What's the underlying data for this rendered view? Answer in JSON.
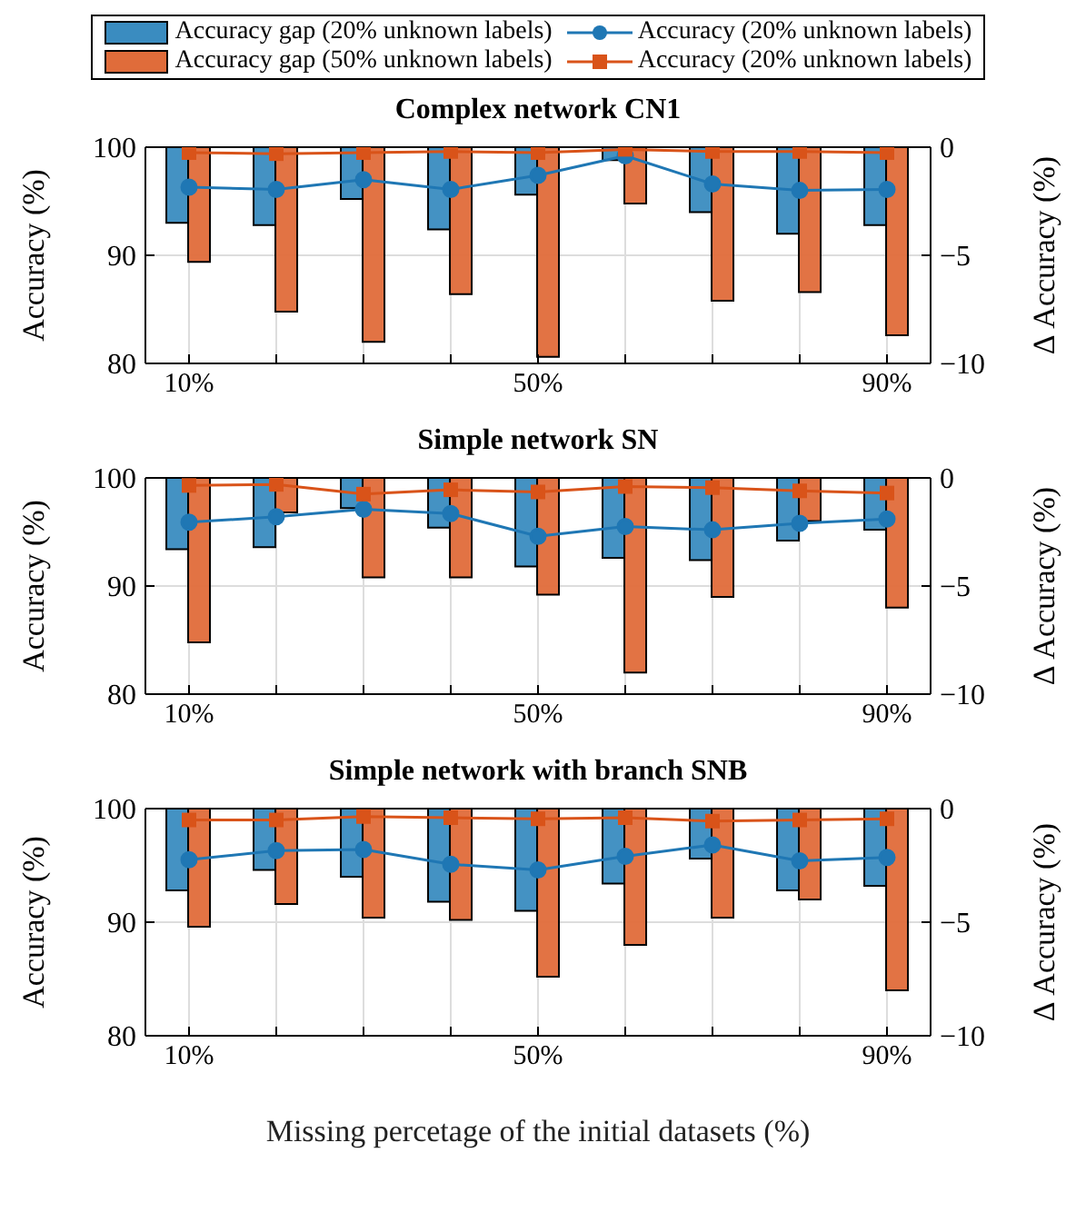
{
  "chart_data": [
    {
      "type": "bar",
      "title": "Complex network CN1",
      "ylabel": "Accuracy (%)",
      "y2label": "Δ Accuracy (%)",
      "legend": "top",
      "grid": true,
      "categories": [
        "10%",
        null,
        null,
        null,
        "50%",
        null,
        null,
        null,
        "90%"
      ],
      "ylim": [
        80,
        100
      ],
      "yticks": [
        80,
        90,
        100
      ],
      "y2lim": [
        -10,
        0
      ],
      "y2ticks": [
        -10,
        -5,
        0
      ],
      "series": [
        {
          "name": "Accuracy gap (20% unknown labels)",
          "type": "bar",
          "axis": "y2",
          "color": "#3a8cc0",
          "values": [
            -3.5,
            -3.6,
            -2.4,
            -3.8,
            -2.2,
            -0.6,
            -3.0,
            -4.0,
            -3.6
          ]
        },
        {
          "name": "Accuracy gap (50% unknown labels)",
          "type": "bar",
          "axis": "y2",
          "color": "#e06c3a",
          "values": [
            -5.3,
            -7.6,
            -9.0,
            -6.8,
            -9.7,
            -2.6,
            -7.1,
            -6.7,
            -8.7
          ]
        },
        {
          "name": "Accuracy (20% unknown labels)",
          "type": "line",
          "marker": "circle",
          "color": "#1f77b4",
          "values": [
            96.3,
            96.1,
            97.0,
            96.1,
            97.4,
            99.2,
            96.6,
            96.0,
            96.1
          ]
        },
        {
          "name": "Accuracy (20% unknown labels)",
          "type": "line",
          "marker": "square",
          "color": "#d95319",
          "values": [
            99.5,
            99.4,
            99.5,
            99.6,
            99.5,
            99.8,
            99.6,
            99.6,
            99.5
          ]
        }
      ]
    },
    {
      "type": "bar",
      "title": "Simple network SN",
      "ylabel": "Accuracy (%)",
      "y2label": "Δ Accuracy (%)",
      "grid": true,
      "categories": [
        "10%",
        null,
        null,
        null,
        "50%",
        null,
        null,
        null,
        "90%"
      ],
      "ylim": [
        80,
        100
      ],
      "yticks": [
        80,
        90,
        100
      ],
      "y2lim": [
        -10,
        0
      ],
      "y2ticks": [
        -10,
        -5,
        0
      ],
      "series": [
        {
          "type": "bar",
          "axis": "y2",
          "color": "#3a8cc0",
          "values": [
            -3.3,
            -3.2,
            -1.4,
            -2.3,
            -4.1,
            -3.7,
            -3.8,
            -2.9,
            -2.4
          ]
        },
        {
          "type": "bar",
          "axis": "y2",
          "color": "#e06c3a",
          "values": [
            -7.6,
            -1.6,
            -4.6,
            -4.6,
            -5.4,
            -9.0,
            -5.5,
            -2.0,
            -6.0
          ]
        },
        {
          "type": "line",
          "marker": "circle",
          "color": "#1f77b4",
          "values": [
            95.9,
            96.4,
            97.1,
            96.7,
            94.6,
            95.5,
            95.2,
            95.8,
            96.2
          ]
        },
        {
          "type": "line",
          "marker": "square",
          "color": "#d95319",
          "values": [
            99.3,
            99.4,
            98.5,
            98.9,
            98.7,
            99.2,
            99.1,
            98.8,
            98.6
          ]
        }
      ]
    },
    {
      "type": "bar",
      "title": "Simple network with branch SNB",
      "ylabel": "Accuracy (%)",
      "y2label": "Δ Accuracy (%)",
      "xlabel": "Missing percetage of the initial datasets (%)",
      "grid": true,
      "categories": [
        "10%",
        null,
        null,
        null,
        "50%",
        null,
        null,
        null,
        "90%"
      ],
      "ylim": [
        80,
        100
      ],
      "yticks": [
        80,
        90,
        100
      ],
      "y2lim": [
        -10,
        0
      ],
      "y2ticks": [
        -10,
        -5,
        0
      ],
      "series": [
        {
          "type": "bar",
          "axis": "y2",
          "color": "#3a8cc0",
          "values": [
            -3.6,
            -2.7,
            -3.0,
            -4.1,
            -4.5,
            -3.3,
            -2.2,
            -3.6,
            -3.4
          ]
        },
        {
          "type": "bar",
          "axis": "y2",
          "color": "#e06c3a",
          "values": [
            -5.2,
            -4.2,
            -4.8,
            -4.9,
            -7.4,
            -6.0,
            -4.8,
            -4.0,
            -8.0
          ]
        },
        {
          "type": "line",
          "marker": "circle",
          "color": "#1f77b4",
          "values": [
            95.5,
            96.3,
            96.4,
            95.1,
            94.6,
            95.8,
            96.8,
            95.4,
            95.7
          ]
        },
        {
          "type": "line",
          "marker": "square",
          "color": "#d95319",
          "values": [
            99.0,
            99.0,
            99.3,
            99.2,
            99.1,
            99.2,
            98.9,
            99.0,
            99.1
          ]
        }
      ]
    }
  ]
}
